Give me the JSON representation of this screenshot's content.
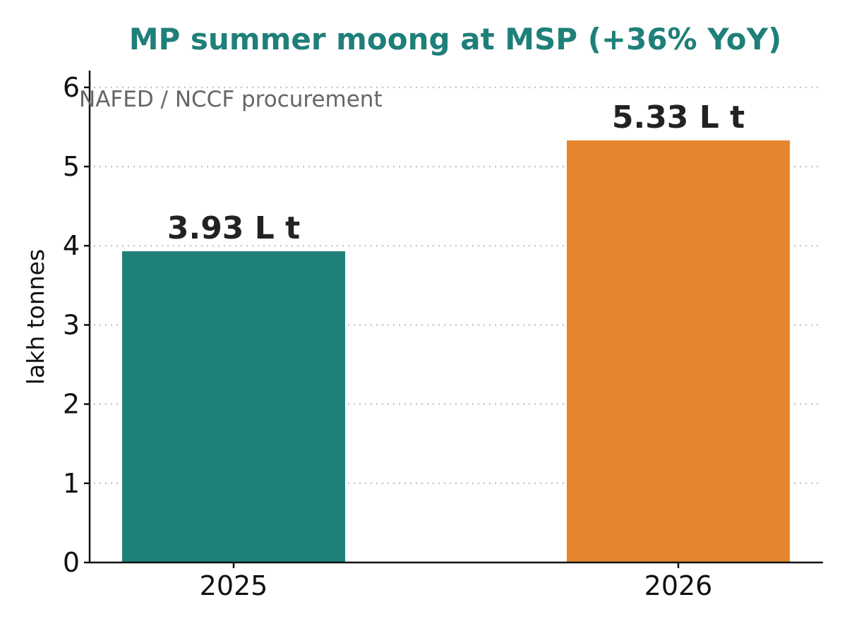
{
  "chart_data": {
    "type": "bar",
    "title": "MP summer moong at MSP  (+36% YoY)",
    "subtitle": "NAFED / NCCF procurement",
    "xlabel": "",
    "ylabel": "lakh tonnes",
    "categories": [
      "2025",
      "2026"
    ],
    "values": [
      3.93,
      5.33
    ],
    "value_labels": [
      "3.93 L t",
      "5.33 L t"
    ],
    "bar_colors": [
      "#1f7f79",
      "#e6852d"
    ],
    "title_color": "#1f7f79",
    "ylim": [
      0,
      6.2
    ],
    "yticks": [
      0,
      1,
      2,
      3,
      4,
      5,
      6
    ],
    "grid": true
  }
}
